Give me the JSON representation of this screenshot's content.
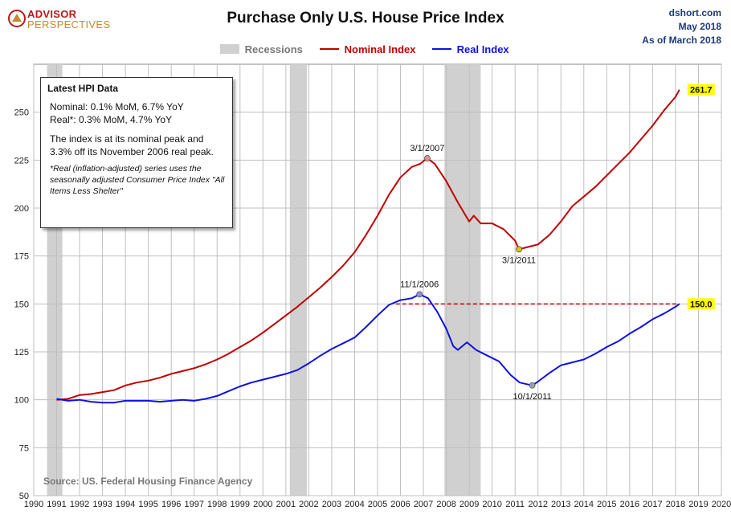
{
  "logo": {
    "line1": "ADVISOR",
    "line2": "PERSPECTIVES"
  },
  "title": "Purchase Only U.S. House Price Index",
  "meta": {
    "site": "dshort.com",
    "date": "May 2018",
    "asof": "As of March 2018"
  },
  "legend": {
    "recessions": "Recessions",
    "nominal": "Nominal Index",
    "real": "Real Index"
  },
  "colors": {
    "nominal": "#c00000",
    "real": "#1010e0",
    "recession": "#d0d0d0",
    "grid": "#bfbfbf",
    "callout_bg": "#ffff00"
  },
  "info_box": {
    "heading": "Latest HPI Data",
    "nominal_line": "Nominal:  0.1% MoM, 6.7% YoY",
    "real_line": "Real*:  0.3% MoM, 4.7% YoY",
    "peak_text": "The index is at its nominal peak and 3.3% off its November 2006 real peak.",
    "footnote": "*Real (inflation-adjusted) series uses the seasonally adjusted Consumer Price Index \"All Items Less Shelter\""
  },
  "source": "Source: US. Federal Housing Finance Agency",
  "chart_data": {
    "type": "line",
    "x_range": [
      1990,
      2020
    ],
    "y_range": [
      50,
      275
    ],
    "x_ticks": [
      1990,
      1991,
      1992,
      1993,
      1994,
      1995,
      1996,
      1997,
      1998,
      1999,
      2000,
      2001,
      2002,
      2003,
      2004,
      2005,
      2006,
      2007,
      2008,
      2009,
      2010,
      2011,
      2012,
      2013,
      2014,
      2015,
      2016,
      2017,
      2018,
      2019,
      2020
    ],
    "y_ticks": [
      50,
      75,
      100,
      125,
      150,
      175,
      200,
      225,
      250
    ],
    "recessions": [
      [
        1990.58,
        1991.25
      ],
      [
        2001.17,
        2001.92
      ],
      [
        2007.92,
        2009.5
      ]
    ],
    "series": [
      {
        "name": "Nominal Index",
        "color": "#c00000",
        "points": [
          [
            1991.0,
            100.0
          ],
          [
            1991.5,
            100.5
          ],
          [
            1992.0,
            102.5
          ],
          [
            1992.5,
            103.0
          ],
          [
            1993.0,
            104.0
          ],
          [
            1993.5,
            105.0
          ],
          [
            1994.0,
            107.5
          ],
          [
            1994.5,
            109.0
          ],
          [
            1995.0,
            110.0
          ],
          [
            1995.5,
            111.5
          ],
          [
            1996.0,
            113.5
          ],
          [
            1996.5,
            115.0
          ],
          [
            1997.0,
            116.5
          ],
          [
            1997.5,
            118.5
          ],
          [
            1998.0,
            121.0
          ],
          [
            1998.5,
            124.0
          ],
          [
            1999.0,
            127.5
          ],
          [
            1999.5,
            131.0
          ],
          [
            2000.0,
            135.0
          ],
          [
            2000.5,
            139.5
          ],
          [
            2001.0,
            144.0
          ],
          [
            2001.5,
            148.5
          ],
          [
            2002.0,
            153.5
          ],
          [
            2002.5,
            158.5
          ],
          [
            2003.0,
            164.0
          ],
          [
            2003.5,
            170.0
          ],
          [
            2004.0,
            177.0
          ],
          [
            2004.5,
            186.0
          ],
          [
            2005.0,
            196.0
          ],
          [
            2005.5,
            207.0
          ],
          [
            2006.0,
            216.0
          ],
          [
            2006.5,
            221.5
          ],
          [
            2006.85,
            223.0
          ],
          [
            2007.17,
            226.0
          ],
          [
            2007.5,
            223.0
          ],
          [
            2008.0,
            214.0
          ],
          [
            2008.5,
            203.0
          ],
          [
            2009.0,
            193.0
          ],
          [
            2009.2,
            196.0
          ],
          [
            2009.5,
            192.0
          ],
          [
            2010.0,
            192.0
          ],
          [
            2010.5,
            189.0
          ],
          [
            2011.0,
            183.0
          ],
          [
            2011.17,
            178.5
          ],
          [
            2011.5,
            179.5
          ],
          [
            2012.0,
            181.0
          ],
          [
            2012.5,
            186.0
          ],
          [
            2013.0,
            193.0
          ],
          [
            2013.5,
            201.0
          ],
          [
            2014.0,
            206.0
          ],
          [
            2014.5,
            211.0
          ],
          [
            2015.0,
            217.0
          ],
          [
            2015.5,
            223.0
          ],
          [
            2016.0,
            229.0
          ],
          [
            2016.5,
            236.0
          ],
          [
            2017.0,
            243.0
          ],
          [
            2017.5,
            251.0
          ],
          [
            2018.0,
            258.0
          ],
          [
            2018.17,
            261.7
          ]
        ]
      },
      {
        "name": "Real Index",
        "color": "#1010e0",
        "points": [
          [
            1991.0,
            100.5
          ],
          [
            1991.5,
            99.5
          ],
          [
            1992.0,
            100.0
          ],
          [
            1992.5,
            99.0
          ],
          [
            1993.0,
            98.5
          ],
          [
            1993.5,
            98.5
          ],
          [
            1994.0,
            99.5
          ],
          [
            1994.5,
            99.5
          ],
          [
            1995.0,
            99.5
          ],
          [
            1995.5,
            99.0
          ],
          [
            1996.0,
            99.5
          ],
          [
            1996.5,
            100.0
          ],
          [
            1997.0,
            99.5
          ],
          [
            1997.5,
            100.5
          ],
          [
            1998.0,
            102.0
          ],
          [
            1998.5,
            104.5
          ],
          [
            1999.0,
            107.0
          ],
          [
            1999.5,
            109.0
          ],
          [
            2000.0,
            110.5
          ],
          [
            2000.5,
            112.0
          ],
          [
            2001.0,
            113.5
          ],
          [
            2001.5,
            115.5
          ],
          [
            2002.0,
            119.0
          ],
          [
            2002.5,
            123.0
          ],
          [
            2003.0,
            126.5
          ],
          [
            2003.5,
            129.5
          ],
          [
            2004.0,
            132.5
          ],
          [
            2004.5,
            138.0
          ],
          [
            2005.0,
            144.0
          ],
          [
            2005.5,
            149.5
          ],
          [
            2006.0,
            152.0
          ],
          [
            2006.5,
            153.0
          ],
          [
            2006.83,
            155.0
          ],
          [
            2007.2,
            153.0
          ],
          [
            2007.6,
            146.0
          ],
          [
            2008.0,
            137.0
          ],
          [
            2008.3,
            128.0
          ],
          [
            2008.5,
            126.0
          ],
          [
            2008.9,
            130.0
          ],
          [
            2009.3,
            126.0
          ],
          [
            2009.8,
            123.0
          ],
          [
            2010.3,
            120.0
          ],
          [
            2010.8,
            113.0
          ],
          [
            2011.2,
            109.0
          ],
          [
            2011.75,
            107.5
          ],
          [
            2012.0,
            109.5
          ],
          [
            2012.5,
            114.0
          ],
          [
            2013.0,
            118.0
          ],
          [
            2013.5,
            119.5
          ],
          [
            2014.0,
            121.0
          ],
          [
            2014.5,
            124.0
          ],
          [
            2015.0,
            127.5
          ],
          [
            2015.5,
            130.5
          ],
          [
            2016.0,
            134.5
          ],
          [
            2016.5,
            138.0
          ],
          [
            2017.0,
            142.0
          ],
          [
            2017.5,
            145.0
          ],
          [
            2018.0,
            148.5
          ],
          [
            2018.17,
            150.0
          ]
        ]
      }
    ],
    "reference_line": {
      "value": 150.0,
      "from": 2005.8,
      "to": 2018.17,
      "color": "#c00000"
    },
    "annotations": [
      {
        "label": "3/1/2007",
        "x": 2007.17,
        "y": 226.0,
        "dot": "#e09090",
        "place": "above"
      },
      {
        "label": "3/1/2011",
        "x": 2011.17,
        "y": 178.5,
        "dot": "#e8c000",
        "place": "below"
      },
      {
        "label": "11/1/2006",
        "x": 2006.83,
        "y": 155.0,
        "dot": "#9090e0",
        "place": "above"
      },
      {
        "label": "10/1/2011",
        "x": 2011.75,
        "y": 107.5,
        "dot": "#a0a0a0",
        "place": "below"
      }
    ],
    "callouts": [
      {
        "label": "261.7",
        "x": 2018.17,
        "y": 261.7
      },
      {
        "label": "150.0",
        "x": 2018.17,
        "y": 150.0
      }
    ]
  }
}
